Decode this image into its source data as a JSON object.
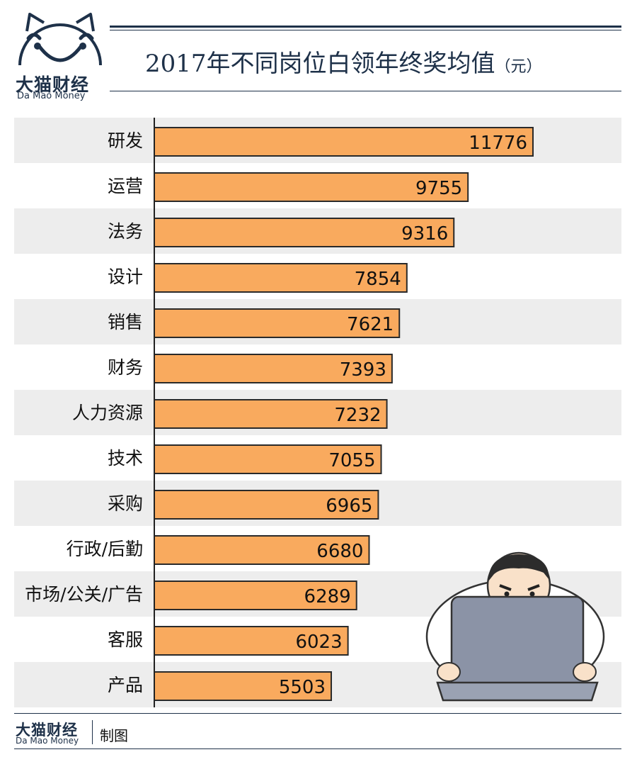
{
  "brand": {
    "name": "大猫财经",
    "name_en": "Da Mao Money"
  },
  "header": {
    "title": "2017年不同岗位白领年终奖均值",
    "unit": "（元）"
  },
  "footer": {
    "credit": "制图"
  },
  "colors": {
    "bar": "#f9aa5e",
    "bar_stroke": "#2a2a2a",
    "band": "#ededed",
    "navy": "#1e3149"
  },
  "chart_data": {
    "type": "bar",
    "orientation": "horizontal",
    "title": "2017年不同岗位白领年终奖均值（元）",
    "categories": [
      "研发",
      "运营",
      "法务",
      "设计",
      "销售",
      "财务",
      "人力资源",
      "技术",
      "采购",
      "行政/后勤",
      "市场/公关/广告",
      "客服",
      "产品"
    ],
    "values": [
      11776,
      9755,
      9316,
      7854,
      7621,
      7393,
      7232,
      7055,
      6965,
      6680,
      6289,
      6023,
      5503
    ],
    "data_labels": [
      "11776",
      "9755",
      "9316",
      "7854",
      "7621",
      "7393",
      "7232",
      "7055",
      "6965",
      "6680",
      "6289",
      "6023",
      "5503"
    ],
    "xlim": [
      0,
      12000
    ],
    "grid": false,
    "legend": "none"
  }
}
